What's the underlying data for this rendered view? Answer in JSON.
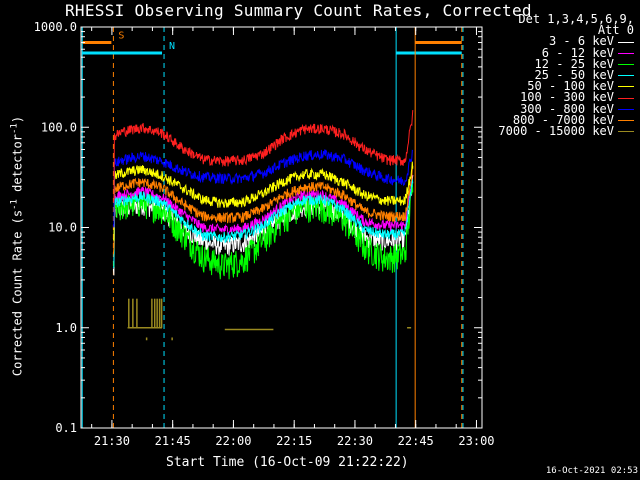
{
  "chart_data": {
    "type": "line",
    "title": "RHESSI Observing Summary Count Rates, Corrected",
    "xlabel": "Start Time (16-Oct-09 21:22:22)",
    "ylabel": "Corrected Count Rate (s",
    "ylabel_sup": "-1",
    "ylabel_mid": " detector",
    "ylabel_tail": ")",
    "yscale": "log",
    "ylim": [
      0.1,
      1000
    ],
    "xlim_minutes": [
      0,
      99
    ],
    "x_ticks": [
      "21:30",
      "21:45",
      "22:00",
      "22:15",
      "22:30",
      "22:45",
      "23:00"
    ],
    "y_ticks": [
      "0.1",
      "1.0",
      "10.0",
      "100.0",
      "1000.0"
    ],
    "grid": false,
    "legend_position": "right, outside top",
    "legend_header": [
      "Det 1,3,4,5,6,9,",
      "Att 0"
    ],
    "series": [
      {
        "name": "3 - 6 keV",
        "color": "#ffffff",
        "x": [
          8,
          10,
          15,
          20,
          25,
          30,
          35,
          40,
          45,
          50,
          55,
          60,
          65,
          70,
          75,
          80,
          82
        ],
        "values": [
          14.5,
          15.5,
          17,
          15,
          10,
          7.3,
          6.5,
          7,
          9,
          13,
          16.5,
          16,
          13,
          8,
          7.4,
          7.6,
          30
        ]
      },
      {
        "name": "6 - 12 keV",
        "color": "#ff00ff",
        "x": [
          8,
          10,
          15,
          20,
          25,
          30,
          35,
          40,
          45,
          50,
          55,
          60,
          65,
          70,
          75,
          80,
          82
        ],
        "values": [
          20,
          21,
          23,
          20,
          14,
          10,
          9.5,
          9.8,
          12,
          17,
          21.5,
          21,
          17,
          11.5,
          10.5,
          10.5,
          35
        ]
      },
      {
        "name": "12 - 25 keV",
        "color": "#00ff00",
        "x": [
          8,
          10,
          15,
          20,
          25,
          30,
          35,
          40,
          45,
          50,
          55,
          60,
          65,
          70,
          75,
          80,
          82
        ],
        "values": [
          16,
          16.5,
          18,
          15.5,
          9,
          5.2,
          4.2,
          4.8,
          7.5,
          12.5,
          16.5,
          16,
          12,
          6.5,
          5,
          5.5,
          30
        ]
      },
      {
        "name": "25 - 50 keV",
        "color": "#00ffff",
        "x": [
          8,
          10,
          15,
          20,
          25,
          30,
          35,
          40,
          45,
          50,
          55,
          60,
          65,
          70,
          75,
          80,
          82
        ],
        "values": [
          17.5,
          18.5,
          20.5,
          18,
          12,
          8.3,
          8,
          8.5,
          10.5,
          15,
          19,
          19,
          15,
          9.5,
          8.5,
          8.6,
          32
        ]
      },
      {
        "name": "50 - 100 keV",
        "color": "#ffff00",
        "x": [
          8,
          10,
          15,
          20,
          25,
          30,
          35,
          40,
          45,
          50,
          55,
          60,
          65,
          70,
          75,
          80,
          82
        ],
        "values": [
          32,
          35,
          38,
          33,
          25,
          19,
          17.5,
          18,
          22,
          29,
          34,
          34,
          28,
          21,
          18.5,
          18.5,
          45
        ]
      },
      {
        "name": "100 - 300 keV",
        "color": "#ff2020",
        "x": [
          8,
          10,
          15,
          20,
          25,
          30,
          35,
          40,
          45,
          50,
          55,
          60,
          65,
          70,
          75,
          80,
          82
        ],
        "values": [
          80,
          90,
          100,
          88,
          62,
          48,
          46,
          47,
          55,
          78,
          96,
          97,
          85,
          60,
          48,
          46,
          140
        ]
      },
      {
        "name": "300 - 800 keV",
        "color": "#0000ff",
        "x": [
          8,
          10,
          15,
          20,
          25,
          30,
          35,
          40,
          45,
          50,
          55,
          60,
          65,
          70,
          75,
          80,
          82
        ],
        "values": [
          43,
          47,
          52,
          46,
          37,
          32,
          31,
          31,
          35,
          44,
          52,
          54,
          48,
          37,
          31,
          29,
          60
        ]
      },
      {
        "name": "800 - 7000 keV",
        "color": "#ff8000",
        "x": [
          8,
          10,
          15,
          20,
          25,
          30,
          35,
          40,
          45,
          50,
          55,
          60,
          65,
          70,
          75,
          80,
          82
        ],
        "values": [
          24,
          26,
          28.5,
          25,
          17.5,
          13,
          12.5,
          12.7,
          15.5,
          21,
          25.5,
          25.5,
          21,
          14.5,
          13,
          13,
          40
        ]
      },
      {
        "name": "7000 - 15000 keV",
        "color": "#9a8a20",
        "segments": [
          {
            "x": [
              11.5,
              20
            ],
            "value": 1.0
          },
          {
            "x": [
              35.5,
              47.5
            ],
            "value": 0.96
          },
          {
            "x": [
              80.5,
              81.5
            ],
            "value": 1.0
          }
        ],
        "spikes": {
          "x": [
            11.8,
            12.8,
            13.8,
            17.5,
            18.2,
            18.8,
            19.4,
            19.9
          ],
          "value": 1.95
        },
        "drops": {
          "x": [
            16.2,
            22.5
          ],
          "value": 0.75
        }
      }
    ],
    "annotations": [
      {
        "label": "S",
        "color": "#ff8000",
        "x": 8,
        "bar_x": [
          0.3,
          7.5
        ],
        "bar_y": 700,
        "line_style": "dashed"
      },
      {
        "label": "N",
        "color": "#00e0ff",
        "x": 20.5,
        "bar_x": [
          0.3,
          20
        ],
        "bar_y": 550,
        "line_style": "dashed"
      },
      {
        "label": "",
        "color": "#00e0ff",
        "x": 0.3,
        "line_style": "solid"
      },
      {
        "label": "",
        "color": "#00e0ff",
        "x": 77.8,
        "bar_x": [
          77.8,
          94
        ],
        "bar_y": 550,
        "line_style": "solid"
      },
      {
        "label": "",
        "color": "#ff8000",
        "x": 82.5,
        "bar_x": [
          82.5,
          94
        ],
        "bar_y": 700,
        "line_style": "solid"
      },
      {
        "label": "",
        "color": "#ff8000",
        "x": 94,
        "line_style": "dashed"
      },
      {
        "label": "",
        "color": "#00e0ff",
        "x": 94.3,
        "line_style": "dashed"
      }
    ]
  },
  "timestamp": "16-Oct-2021 02:53"
}
